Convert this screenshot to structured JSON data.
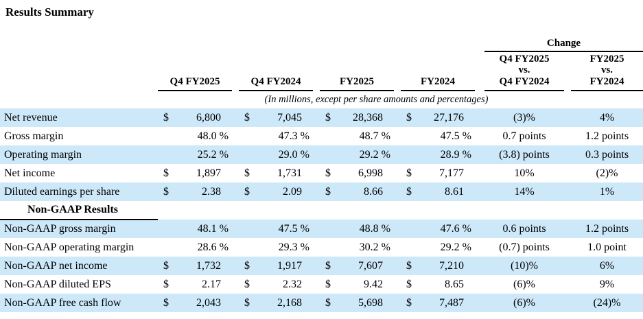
{
  "title": "Results Summary",
  "table": {
    "currency_symbol": "$",
    "change_header": "Change",
    "note": "(In millions, except per share amounts and percentages)",
    "columns": [
      "Q4 FY2025",
      "Q4 FY2024",
      "FY2025",
      "FY2024"
    ],
    "change_columns": [
      {
        "line1": "Q4 FY2025",
        "line2": "vs.",
        "line3": "Q4 FY2024"
      },
      {
        "line1": "FY2025",
        "line2": "vs.",
        "line3": "FY2024"
      }
    ],
    "rows": [
      {
        "label": "Net revenue",
        "dollar": true,
        "values": [
          "6,800",
          "7,045",
          "28,368",
          "27,176"
        ],
        "change_q4": "(3)%",
        "change_fy": "4%",
        "shaded": true
      },
      {
        "label": "Gross margin",
        "dollar": false,
        "values": [
          "48.0 %",
          "47.3 %",
          "48.7 %",
          "47.5 %"
        ],
        "change_q4": "0.7 points",
        "change_fy": "1.2 points",
        "shaded": false
      },
      {
        "label": "Operating margin",
        "dollar": false,
        "values": [
          "25.2 %",
          "29.0 %",
          "29.2 %",
          "28.9 %"
        ],
        "change_q4": "(3.8) points",
        "change_fy": "0.3 points",
        "shaded": true
      },
      {
        "label": "Net income",
        "dollar": true,
        "values": [
          "1,897",
          "1,731",
          "6,998",
          "7,177"
        ],
        "change_q4": "10%",
        "change_fy": "(2)%",
        "shaded": false
      },
      {
        "label": "Diluted earnings per share",
        "dollar": true,
        "values": [
          "2.38",
          "2.09",
          "8.66",
          "8.61"
        ],
        "change_q4": "14%",
        "change_fy": "1%",
        "shaded": true
      },
      {
        "label": "Non-GAAP Results",
        "section": true,
        "shaded": false
      },
      {
        "label": "Non-GAAP gross margin",
        "dollar": false,
        "values": [
          "48.1 %",
          "47.5 %",
          "48.8 %",
          "47.6 %"
        ],
        "change_q4": "0.6 points",
        "change_fy": "1.2 points",
        "shaded": true
      },
      {
        "label": "Non-GAAP operating margin",
        "dollar": false,
        "values": [
          "28.6 %",
          "29.3 %",
          "30.2 %",
          "29.2 %"
        ],
        "change_q4": "(0.7) points",
        "change_fy": "1.0 point",
        "shaded": false
      },
      {
        "label": "Non-GAAP net income",
        "dollar": true,
        "values": [
          "1,732",
          "1,917",
          "7,607",
          "7,210"
        ],
        "change_q4": "(10)%",
        "change_fy": "6%",
        "shaded": true
      },
      {
        "label": "Non-GAAP diluted EPS",
        "dollar": true,
        "values": [
          "2.17",
          "2.32",
          "9.42",
          "8.65"
        ],
        "change_q4": "(6)%",
        "change_fy": "9%",
        "shaded": false
      },
      {
        "label": "Non-GAAP free cash flow",
        "dollar": true,
        "values": [
          "2,043",
          "2,168",
          "5,698",
          "7,487"
        ],
        "change_q4": "(6)%",
        "change_fy": "(24)%",
        "shaded": true
      }
    ]
  }
}
